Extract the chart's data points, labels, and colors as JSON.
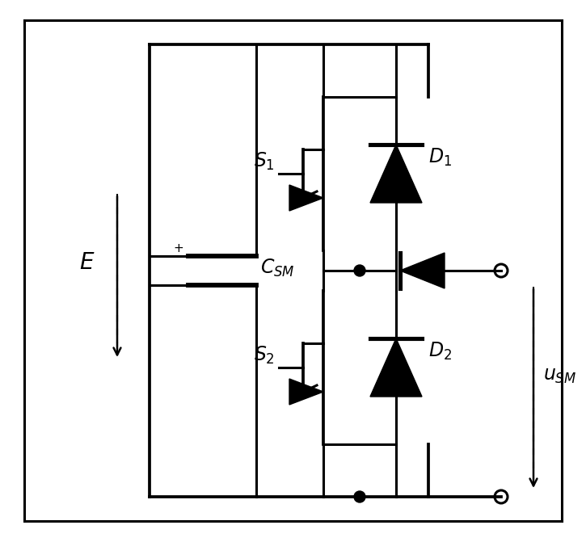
{
  "bg_color": "#ffffff",
  "line_color": "#000000",
  "lw": 2.2,
  "fig_width": 7.25,
  "fig_height": 6.71,
  "dpi": 100
}
